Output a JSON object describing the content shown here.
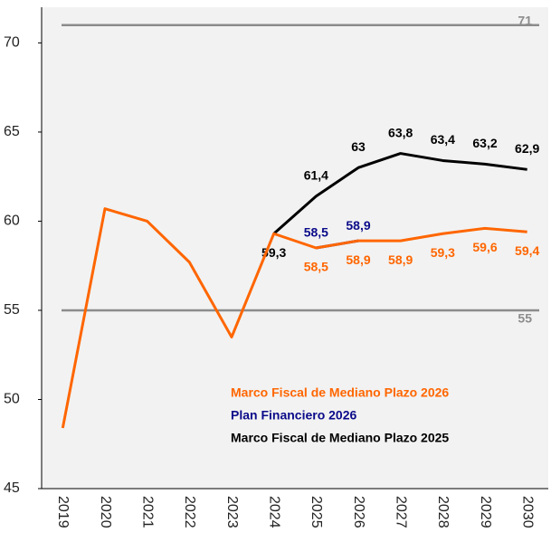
{
  "chart_data": {
    "type": "line",
    "categories": [
      "2019",
      "2020",
      "2021",
      "2022",
      "2023",
      "2024",
      "2025",
      "2026",
      "2027",
      "2028",
      "2029",
      "2030"
    ],
    "series": [
      {
        "name": "Plan Financiero 2026",
        "color": "#0b0b8a",
        "values": [
          null,
          null,
          null,
          null,
          null,
          null,
          58.5,
          58.9,
          null,
          null,
          null,
          null
        ],
        "value_labels": [
          null,
          null,
          null,
          null,
          null,
          null,
          "58,5",
          "58,9",
          null,
          null,
          null,
          null
        ]
      },
      {
        "name": "Marco Fiscal de Mediano Plazo 2025",
        "color": "#000000",
        "values": [
          null,
          null,
          null,
          null,
          null,
          59.3,
          61.4,
          63,
          63.8,
          63.4,
          63.2,
          62.9
        ],
        "value_labels": [
          null,
          null,
          null,
          null,
          null,
          "59,3",
          "61,4",
          "63",
          "63,8",
          "63,4",
          "63,2",
          "62,9"
        ]
      },
      {
        "name": "Marco Fiscal de Mediano Plazo 2026",
        "color": "#ff6600",
        "values": [
          48.4,
          60.7,
          60.0,
          57.7,
          53.5,
          59.3,
          58.5,
          58.9,
          58.9,
          59.3,
          59.6,
          59.4
        ],
        "value_labels": [
          null,
          null,
          null,
          null,
          null,
          null,
          "58,5",
          "58,9",
          "58,9",
          "59,3",
          "59,6",
          "59,4"
        ]
      }
    ],
    "reference_lines": [
      {
        "value": 71,
        "label": "71"
      },
      {
        "value": 55,
        "label": "55"
      }
    ],
    "ylim": [
      45,
      72
    ],
    "yticks": [
      45,
      50,
      55,
      60,
      65,
      70
    ]
  }
}
